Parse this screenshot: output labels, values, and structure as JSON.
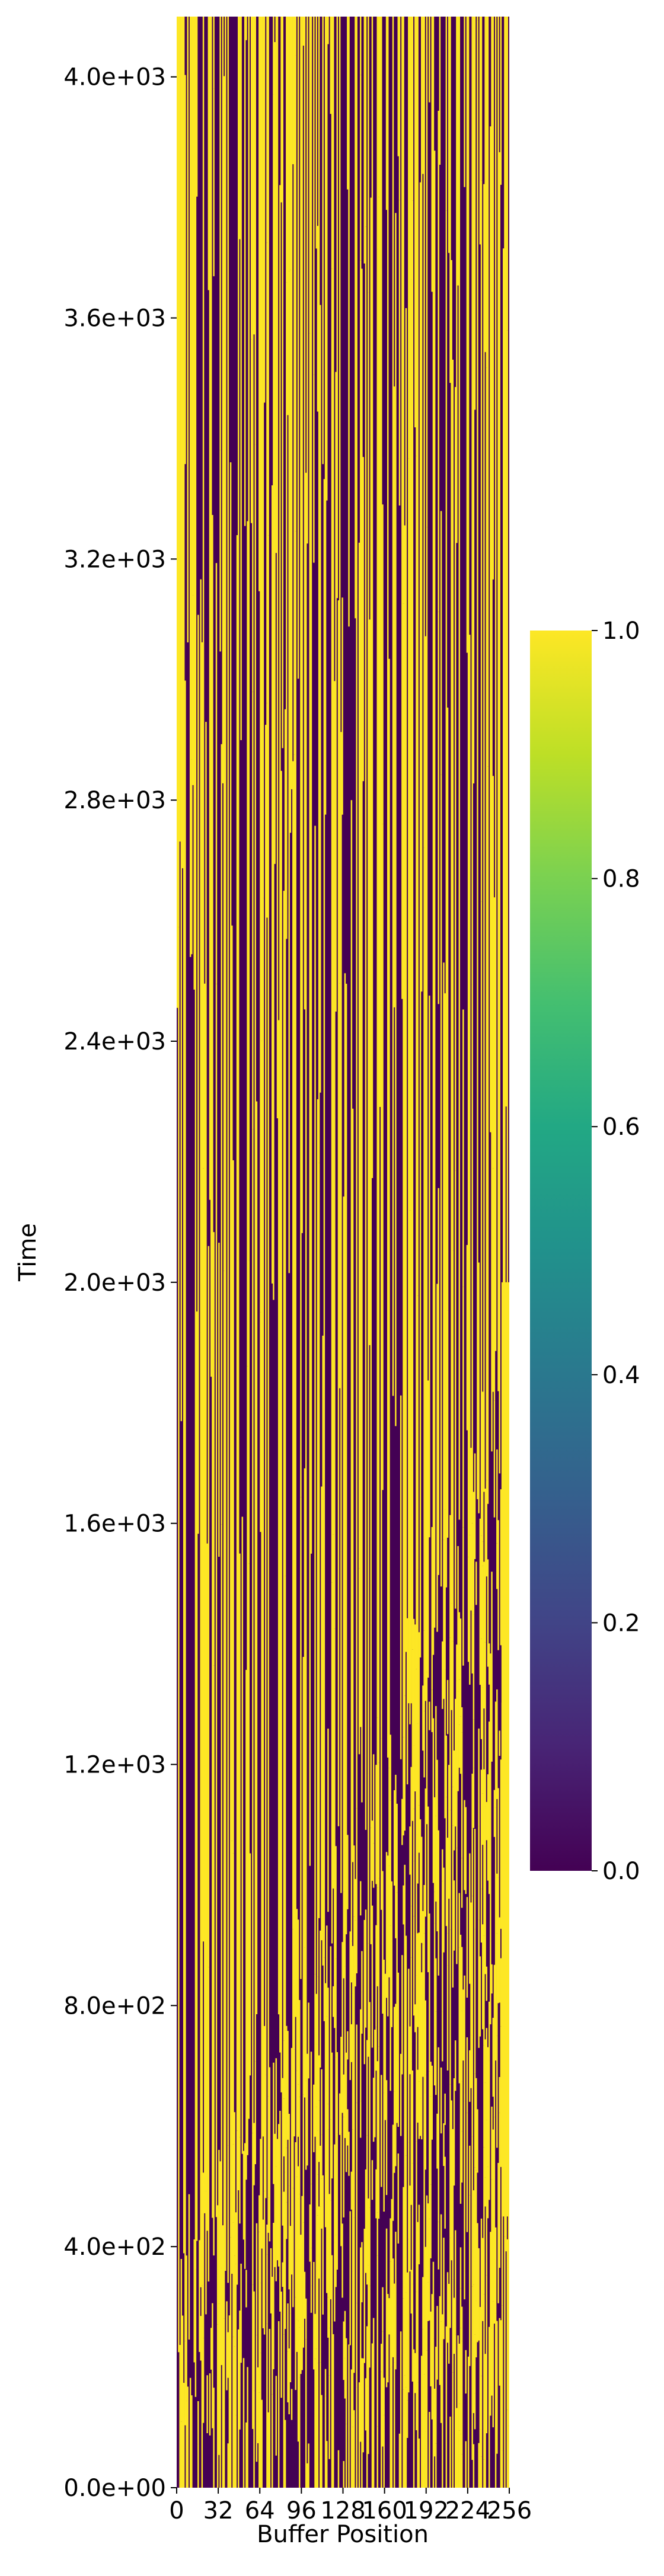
{
  "chart_data": {
    "type": "heatmap",
    "title": "",
    "xlabel": "Buffer Position",
    "ylabel": "Time",
    "x_ticks": [
      "0",
      "32",
      "64",
      "96",
      "128",
      "160",
      "192",
      "224",
      "256"
    ],
    "x_tick_values": [
      0,
      32,
      64,
      96,
      128,
      160,
      192,
      224,
      256
    ],
    "y_ticks": [
      "0.0e+00",
      "4.0e+02",
      "8.0e+02",
      "1.2e+03",
      "1.6e+03",
      "2.0e+03",
      "2.4e+03",
      "2.8e+03",
      "3.2e+03",
      "3.6e+03",
      "4.0e+03"
    ],
    "y_tick_values": [
      0,
      400,
      800,
      1200,
      1600,
      2000,
      2400,
      2800,
      3200,
      3600,
      4000
    ],
    "xlim": [
      0,
      256
    ],
    "ylim": [
      0,
      4100
    ],
    "colormap": "viridis",
    "colorbar": {
      "range": [
        0.0,
        1.0
      ],
      "ticks": [
        "0.0",
        "0.2",
        "0.4",
        "0.6",
        "0.8",
        "1.0"
      ],
      "tick_values": [
        0.0,
        0.2,
        0.4,
        0.6,
        0.8,
        1.0
      ]
    },
    "colors": {
      "low": "#440154",
      "high": "#fde725"
    },
    "grid": false,
    "legend": "colorbar-right",
    "values_description": "binary 0/1 buffer occupancy per position over time"
  }
}
